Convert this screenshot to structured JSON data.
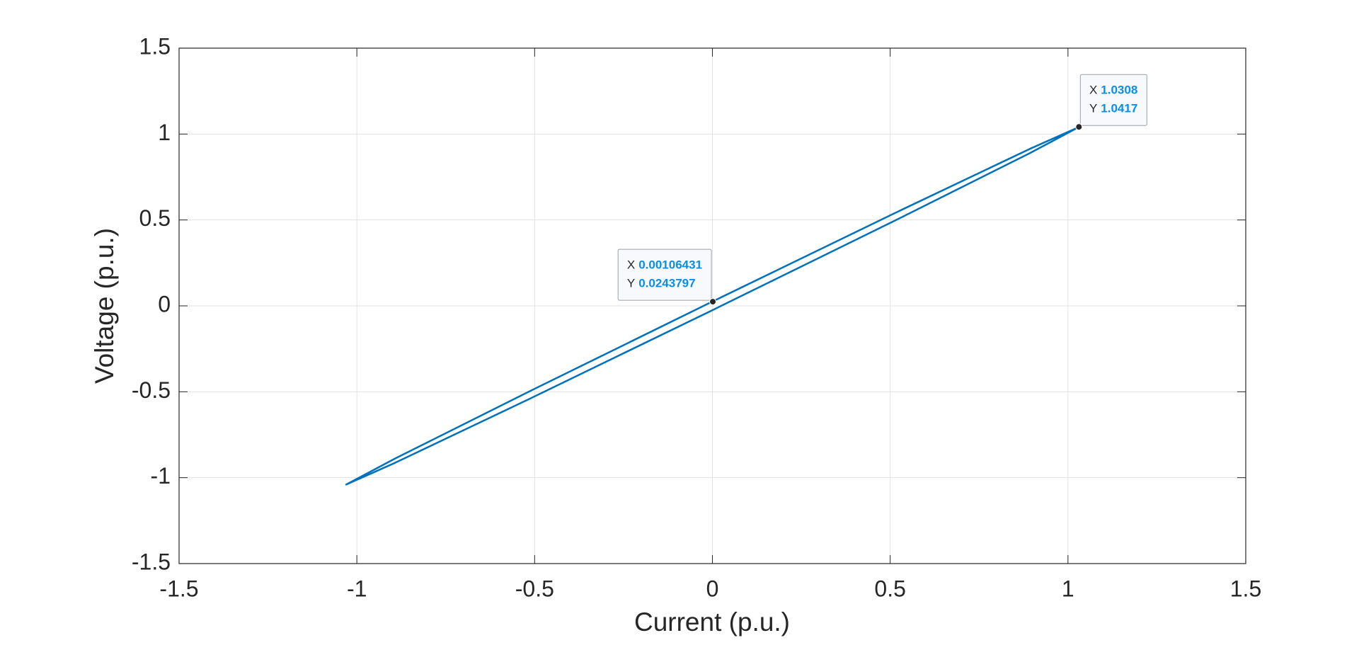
{
  "chart_data": {
    "type": "line",
    "xlabel": "Current (p.u.)",
    "ylabel": "Voltage (p.u.)",
    "x": [
      1.03,
      0.892,
      0.515,
      0,
      -0.515,
      -0.892,
      -1.03,
      -0.892,
      -0.515,
      0,
      0.515,
      0.892,
      1.03
    ],
    "series": [
      {
        "color": "#0072bd",
        "values": [
          1.04,
          0.913,
          0.542,
          0.025,
          -0.498,
          -0.888,
          -1.04,
          -0.913,
          -0.542,
          -0.025,
          0.498,
          0.888,
          1.04
        ]
      }
    ],
    "xlim": [
      -1.5,
      1.5
    ],
    "ylim": [
      -1.5,
      1.5
    ],
    "xticks": [
      -1.5,
      -1,
      -0.5,
      0,
      0.5,
      1,
      1.5
    ],
    "yticks": [
      -1.5,
      -1,
      -0.5,
      0,
      0.5,
      1,
      1.5
    ],
    "grid": true,
    "datatips": [
      {
        "x_name": "X",
        "x": 1.0308,
        "y_name": "Y",
        "y": 1.0417
      },
      {
        "x_name": "X",
        "x": 0.00106431,
        "y_name": "Y",
        "y": 0.0243797
      }
    ]
  }
}
